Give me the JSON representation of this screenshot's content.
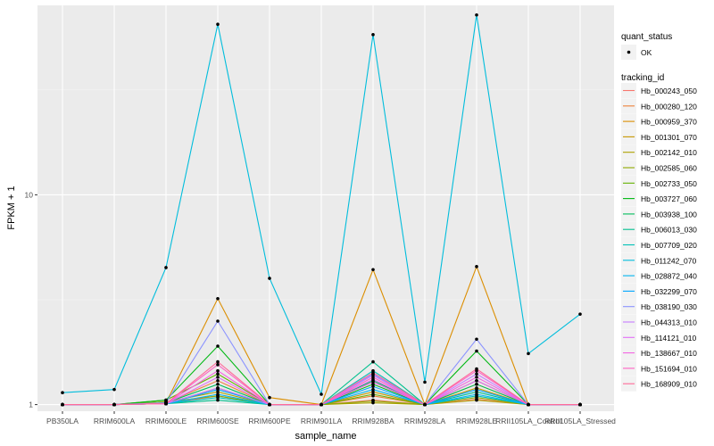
{
  "chart_data": {
    "type": "line",
    "title": "",
    "xlabel": "sample_name",
    "ylabel": "FPKM + 1",
    "y_scale": "log10",
    "ylim": [
      0.93,
      80
    ],
    "y_ticks": [
      {
        "value": 1,
        "label": "1"
      },
      {
        "value": 10,
        "label": "10"
      }
    ],
    "grid": true,
    "categories": [
      "PB350LA",
      "RRIM600LA",
      "RRIM600LE",
      "RRIM600SE",
      "RRIM600PE",
      "RRIM901LA",
      "RRIM928BA",
      "RRIM928LA",
      "RRIM928LE",
      "RRII105LA_Control",
      "RRII105LA_Stressed"
    ],
    "series": [
      {
        "name": "Hb_000243_050",
        "color": "#F8766D",
        "values": [
          1,
          1,
          1.01,
          1.1,
          1,
          1,
          1.05,
          1,
          1.06,
          1,
          1
        ]
      },
      {
        "name": "Hb_000280_120",
        "color": "#EC8239",
        "values": [
          1,
          1,
          1.02,
          1.3,
          1,
          1,
          1.1,
          1,
          1.25,
          1,
          1
        ]
      },
      {
        "name": "Hb_000959_370",
        "color": "#DB8E00",
        "values": [
          1,
          1,
          1.02,
          3.2,
          1.08,
          1,
          4.4,
          1,
          4.55,
          1,
          1
        ]
      },
      {
        "name": "Hb_001301_070",
        "color": "#C79800",
        "values": [
          1,
          1,
          1.01,
          1.2,
          1,
          1,
          1.15,
          1,
          1.2,
          1,
          1
        ]
      },
      {
        "name": "Hb_002142_010",
        "color": "#AEA200",
        "values": [
          1,
          1,
          1.03,
          1.15,
          1,
          1,
          1.02,
          1,
          1.05,
          1,
          1
        ]
      },
      {
        "name": "Hb_002585_060",
        "color": "#8FAA00",
        "values": [
          1,
          1,
          1.03,
          1.1,
          1,
          1,
          1.04,
          1,
          1.08,
          1,
          1
        ]
      },
      {
        "name": "Hb_002733_050",
        "color": "#64B200",
        "values": [
          1,
          1,
          1.05,
          1.4,
          1,
          1,
          1.12,
          1,
          1.3,
          1,
          1
        ]
      },
      {
        "name": "Hb_003727_060",
        "color": "#00B813",
        "values": [
          1,
          1,
          1.05,
          1.9,
          1,
          1,
          1.25,
          1,
          1.8,
          1,
          1
        ]
      },
      {
        "name": "Hb_003938_100",
        "color": "#00BD5C",
        "values": [
          1,
          1,
          1.02,
          1.25,
          1,
          1,
          1.3,
          1,
          1.25,
          1,
          1
        ]
      },
      {
        "name": "Hb_006013_030",
        "color": "#00C08E",
        "values": [
          1,
          1,
          1.01,
          1.05,
          1,
          1,
          1.6,
          1,
          1.15,
          1,
          1
        ]
      },
      {
        "name": "Hb_007709_020",
        "color": "#00C1B7",
        "values": [
          1,
          1,
          1.01,
          1.08,
          1,
          1,
          1.45,
          1,
          1.1,
          1,
          1
        ]
      },
      {
        "name": "Hb_011242_070",
        "color": "#00BDDC",
        "values": [
          1.14,
          1.18,
          4.5,
          65,
          4.0,
          1.12,
          58,
          1.28,
          72,
          1.75,
          2.7
        ]
      },
      {
        "name": "Hb_028872_040",
        "color": "#00B4EF",
        "values": [
          1,
          1,
          1.01,
          1.12,
          1,
          1,
          1.18,
          1,
          1.12,
          1,
          1
        ]
      },
      {
        "name": "Hb_032299_070",
        "color": "#00A6FF",
        "values": [
          1,
          1,
          1.01,
          1.18,
          1,
          1,
          1.22,
          1,
          1.18,
          1,
          1
        ]
      },
      {
        "name": "Hb_038190_030",
        "color": "#8B93FF",
        "values": [
          1,
          1,
          1.02,
          2.5,
          1,
          1,
          1.4,
          1,
          2.05,
          1,
          1
        ]
      },
      {
        "name": "Hb_044313_010",
        "color": "#C77CFF",
        "values": [
          1,
          1,
          1.01,
          1.2,
          1,
          1,
          1.38,
          1,
          1.4,
          1,
          1
        ]
      },
      {
        "name": "Hb_114121_010",
        "color": "#E36EF6",
        "values": [
          1,
          1,
          1.01,
          1.35,
          1,
          1,
          1.32,
          1,
          1.3,
          1,
          1
        ]
      },
      {
        "name": "Hb_138667_010",
        "color": "#F464E2",
        "values": [
          1,
          1,
          1.01,
          1.45,
          1,
          1,
          1.28,
          1,
          1.35,
          1,
          1
        ]
      },
      {
        "name": "Hb_151694_010",
        "color": "#FF61C3",
        "values": [
          1,
          1,
          1.01,
          1.55,
          1,
          1,
          1.35,
          1,
          1.45,
          1,
          1
        ]
      },
      {
        "name": "Hb_168909_010",
        "color": "#FF6A98",
        "values": [
          1,
          1,
          1.01,
          1.6,
          1,
          1,
          1.42,
          1,
          1.48,
          1,
          1
        ]
      }
    ],
    "legends": [
      {
        "title": "quant_status",
        "entries": [
          "OK"
        ]
      },
      {
        "title": "tracking_id",
        "entries": "series"
      }
    ]
  }
}
